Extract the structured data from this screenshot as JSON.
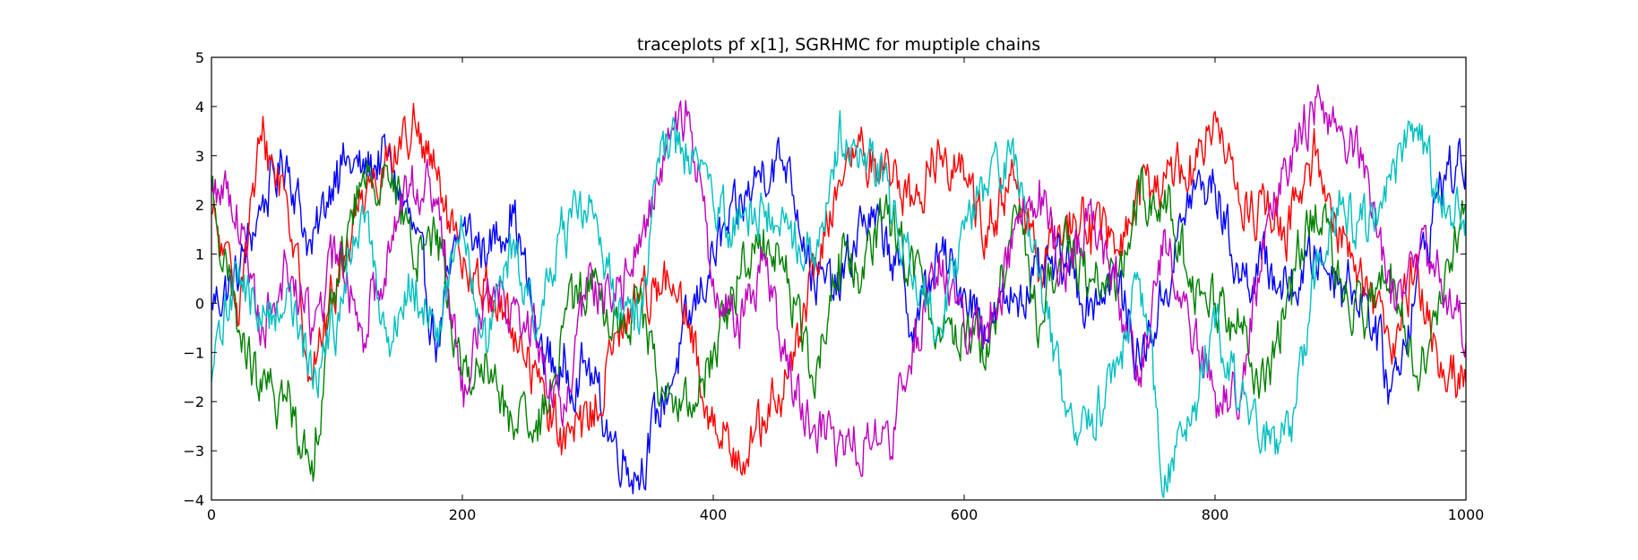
{
  "chart_data": {
    "type": "line",
    "title": "traceplots pf x[1], SGRHMC for muptiple chains",
    "xlabel": "",
    "ylabel": "",
    "xlim": [
      0,
      1000
    ],
    "ylim": [
      -4,
      5
    ],
    "xticks": [
      0,
      200,
      400,
      600,
      800,
      1000
    ],
    "yticks": [
      -4,
      -3,
      -2,
      -1,
      0,
      1,
      2,
      3,
      4,
      5
    ],
    "xtick_labels": [
      "0",
      "200",
      "400",
      "600",
      "800",
      "1000"
    ],
    "ytick_labels": [
      "−4",
      "−3",
      "−2",
      "−1",
      "0",
      "1",
      "2",
      "3",
      "4",
      "5"
    ],
    "grid": false,
    "legend": "none",
    "series": [
      {
        "color": "#0000ff",
        "x": [
          0,
          20,
          40,
          60,
          80,
          100,
          120,
          140,
          160,
          180,
          200,
          220,
          240,
          260,
          280,
          300,
          320,
          340,
          360,
          380,
          400,
          420,
          440,
          460,
          480,
          500,
          520,
          540,
          560,
          580,
          600,
          620,
          640,
          660,
          680,
          700,
          720,
          740,
          760,
          780,
          800,
          820,
          840,
          860,
          880,
          900,
          920,
          940,
          960,
          980,
          1000
        ],
        "y": [
          0.0,
          0.5,
          2.0,
          3.0,
          1.0,
          2.9,
          2.7,
          3.0,
          1.5,
          -0.8,
          1.6,
          1.0,
          2.0,
          -0.8,
          -1.5,
          -1.3,
          -2.8,
          -3.5,
          -2.0,
          -0.5,
          1.0,
          1.8,
          2.8,
          2.9,
          0.5,
          0.2,
          1.8,
          1.2,
          -0.5,
          1.0,
          0.3,
          -0.5,
          0.2,
          0.5,
          0.8,
          0.0,
          0.6,
          -1.2,
          0.2,
          2.2,
          2.4,
          0.5,
          0.8,
          0.2,
          1.0,
          0.5,
          0.2,
          -1.8,
          0.3,
          2.5,
          2.9
        ]
      },
      {
        "color": "#ff0000",
        "x": [
          0,
          20,
          40,
          60,
          80,
          100,
          120,
          140,
          160,
          180,
          200,
          220,
          240,
          260,
          280,
          300,
          320,
          340,
          360,
          380,
          400,
          420,
          440,
          460,
          480,
          500,
          520,
          540,
          560,
          580,
          600,
          620,
          640,
          660,
          680,
          700,
          720,
          740,
          760,
          780,
          800,
          820,
          840,
          860,
          880,
          900,
          920,
          940,
          960,
          980,
          1000
        ],
        "y": [
          1.8,
          0.0,
          3.3,
          2.2,
          -1.5,
          0.5,
          2.3,
          2.9,
          3.6,
          2.5,
          0.5,
          0.3,
          -0.5,
          -1.5,
          -2.8,
          -2.5,
          -1.0,
          0.2,
          0.5,
          -0.5,
          -2.5,
          -3.0,
          -2.5,
          -1.5,
          0.5,
          2.5,
          3.0,
          2.8,
          2.0,
          3.2,
          2.5,
          1.5,
          2.5,
          0.5,
          1.6,
          1.8,
          1.0,
          2.0,
          2.6,
          3.0,
          3.9,
          2.0,
          1.8,
          1.5,
          3.0,
          1.5,
          0.5,
          -1.0,
          0.8,
          -1.2,
          -1.6
        ]
      },
      {
        "color": "#008000",
        "x": [
          0,
          20,
          40,
          60,
          80,
          100,
          120,
          140,
          160,
          180,
          200,
          220,
          240,
          260,
          280,
          300,
          320,
          340,
          360,
          380,
          400,
          420,
          440,
          460,
          480,
          500,
          520,
          540,
          560,
          580,
          600,
          620,
          640,
          660,
          680,
          700,
          720,
          740,
          760,
          780,
          800,
          820,
          840,
          860,
          880,
          900,
          920,
          940,
          960,
          980,
          1000
        ],
        "y": [
          2.3,
          -0.5,
          -1.8,
          -2.0,
          -3.2,
          0.5,
          2.5,
          2.8,
          1.0,
          1.5,
          -1.5,
          -1.3,
          -2.5,
          -2.8,
          -0.5,
          0.5,
          -0.5,
          0.0,
          -1.8,
          -2.3,
          -1.0,
          0.5,
          1.5,
          0.5,
          -1.8,
          1.0,
          0.5,
          2.0,
          0.5,
          -0.5,
          -0.5,
          -1.0,
          2.0,
          -0.5,
          1.5,
          0.5,
          0.3,
          2.2,
          2.3,
          0.5,
          0.0,
          -0.5,
          -1.8,
          0.5,
          2.0,
          0.5,
          -0.5,
          0.8,
          -1.5,
          0.0,
          2.0
        ]
      },
      {
        "color": "#bf00bf",
        "x": [
          0,
          20,
          40,
          60,
          80,
          100,
          120,
          140,
          160,
          180,
          200,
          220,
          240,
          260,
          280,
          300,
          320,
          340,
          360,
          380,
          400,
          420,
          440,
          460,
          480,
          500,
          520,
          540,
          560,
          580,
          600,
          620,
          640,
          660,
          680,
          700,
          720,
          740,
          760,
          780,
          800,
          820,
          840,
          860,
          880,
          900,
          920,
          940,
          960,
          980,
          1000
        ],
        "y": [
          2.5,
          2.0,
          -0.5,
          0.8,
          -0.5,
          1.0,
          -0.5,
          1.0,
          2.8,
          2.0,
          -1.5,
          0.5,
          0.0,
          -0.8,
          -2.5,
          0.5,
          0.0,
          1.0,
          3.0,
          3.9,
          0.5,
          -0.5,
          1.0,
          -1.5,
          -2.5,
          -2.8,
          -2.8,
          -2.8,
          -1.0,
          1.0,
          -0.5,
          -0.8,
          1.5,
          2.5,
          0.5,
          2.0,
          0.5,
          -1.5,
          1.5,
          -0.5,
          -1.8,
          -2.0,
          1.5,
          3.0,
          4.2,
          3.5,
          2.8,
          0.0,
          1.0,
          0.5,
          -0.8
        ]
      },
      {
        "color": "#00bfbf",
        "x": [
          0,
          20,
          40,
          60,
          80,
          100,
          120,
          140,
          160,
          180,
          200,
          220,
          240,
          260,
          280,
          300,
          320,
          340,
          360,
          380,
          400,
          420,
          440,
          460,
          480,
          500,
          520,
          540,
          560,
          580,
          600,
          620,
          640,
          660,
          680,
          700,
          720,
          740,
          760,
          780,
          800,
          820,
          840,
          860,
          880,
          900,
          920,
          940,
          960,
          980,
          1000
        ],
        "y": [
          -1.6,
          0.8,
          -0.5,
          0.3,
          -1.5,
          -0.5,
          2.0,
          -0.8,
          0.5,
          -0.5,
          1.5,
          -1.0,
          1.2,
          -0.5,
          1.5,
          1.8,
          0.5,
          -0.5,
          3.5,
          3.0,
          2.0,
          1.5,
          2.0,
          1.5,
          1.0,
          3.5,
          2.8,
          2.5,
          0.5,
          -0.5,
          1.5,
          2.5,
          2.8,
          0.5,
          -2.0,
          -2.5,
          -1.5,
          0.5,
          -3.5,
          -2.5,
          -0.5,
          -2.0,
          -3.0,
          -2.5,
          0.5,
          2.0,
          1.5,
          2.5,
          3.5,
          2.0,
          2.0
        ]
      }
    ]
  }
}
